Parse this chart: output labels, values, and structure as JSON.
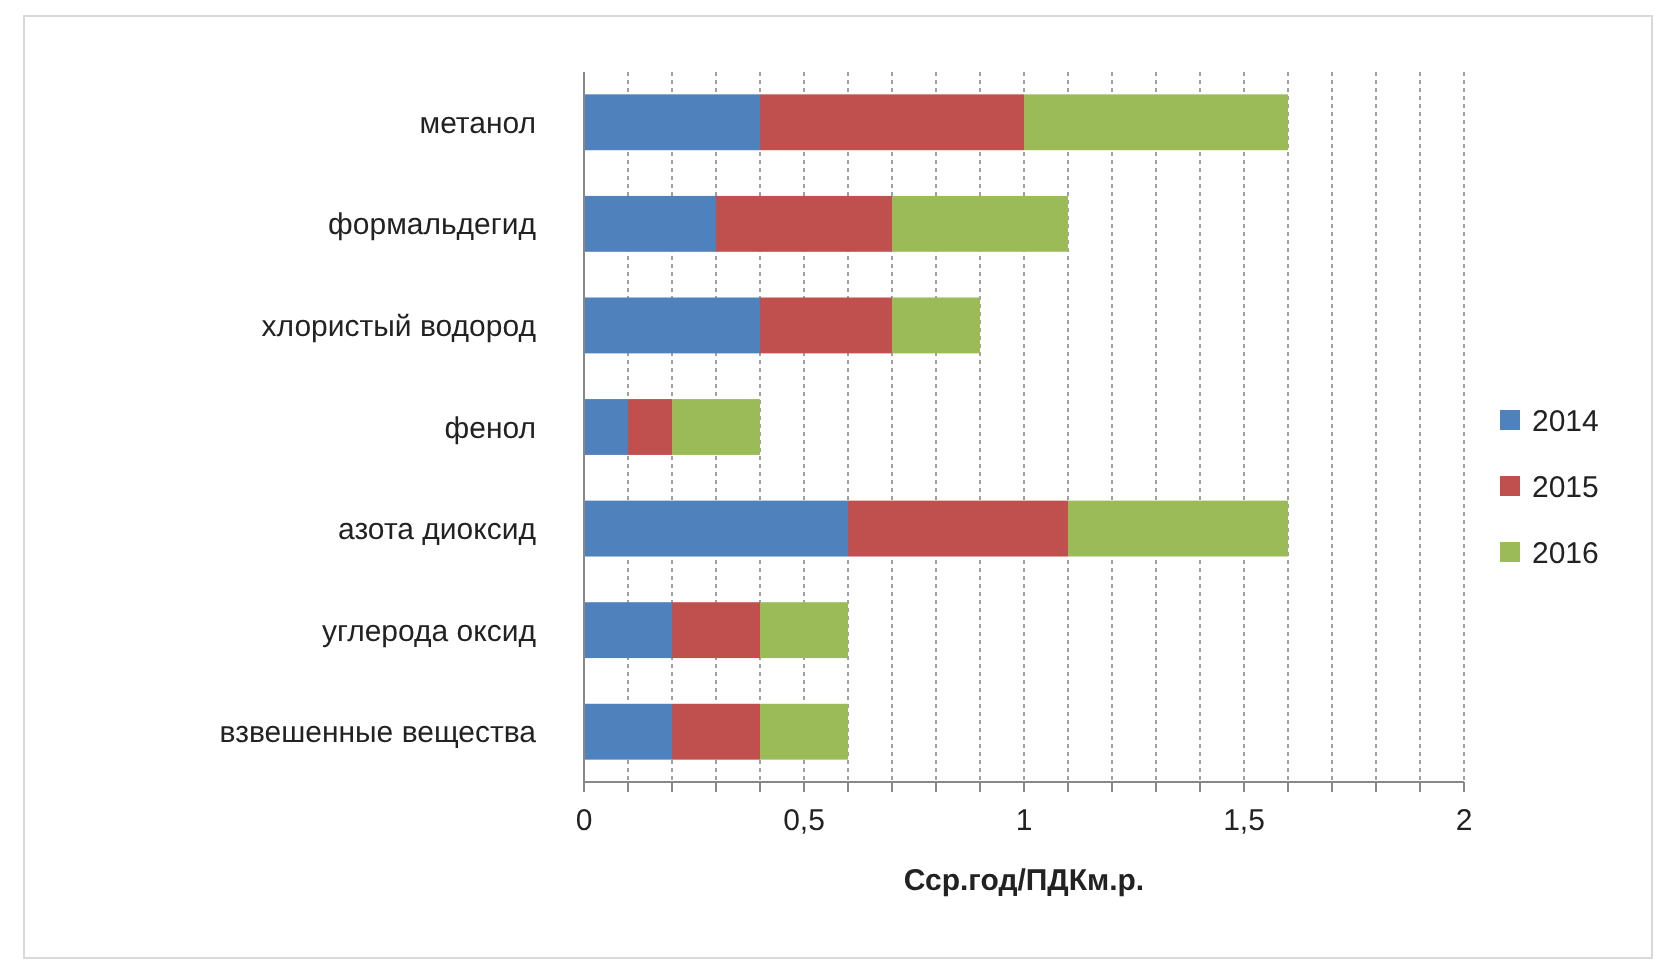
{
  "chart_data": {
    "type": "bar",
    "orientation": "horizontal",
    "stacked": true,
    "categories": [
      "метанол",
      "формальдегид",
      "хлористый водород",
      "фенол",
      "азота диоксид",
      "углерода оксид",
      "взвешенные вещества"
    ],
    "series": [
      {
        "name": "2014",
        "color": "#4f81bd",
        "values": [
          0.4,
          0.3,
          0.4,
          0.1,
          0.6,
          0.2,
          0.2
        ]
      },
      {
        "name": "2015",
        "color": "#c0504d",
        "values": [
          0.6,
          0.4,
          0.3,
          0.1,
          0.5,
          0.2,
          0.2
        ]
      },
      {
        "name": "2016",
        "color": "#9bbb59",
        "values": [
          0.6,
          0.4,
          0.2,
          0.2,
          0.5,
          0.2,
          0.2
        ]
      }
    ],
    "xlabel": "Сср.год/ПДКм.р.",
    "xlim": [
      0,
      2
    ],
    "xticks": [
      0,
      {
        "value": 0.1,
        "label": null
      },
      {
        "value": 0.2,
        "label": null
      },
      {
        "value": 0.3,
        "label": null
      },
      {
        "value": 0.4,
        "label": null
      },
      {
        "value": 0.5,
        "label": "0,5"
      },
      {
        "value": 0.6,
        "label": null
      },
      {
        "value": 0.7,
        "label": null
      },
      {
        "value": 0.8,
        "label": null
      },
      {
        "value": 0.9,
        "label": null
      },
      1,
      {
        "value": 1.1,
        "label": null
      },
      {
        "value": 1.2,
        "label": null
      },
      {
        "value": 1.3,
        "label": null
      },
      {
        "value": 1.4,
        "label": null
      },
      {
        "value": 1.5,
        "label": "1,5"
      },
      {
        "value": 1.6,
        "label": null
      },
      {
        "value": 1.7,
        "label": null
      },
      {
        "value": 1.8,
        "label": null
      },
      {
        "value": 1.9,
        "label": null
      },
      2
    ],
    "grid": "x",
    "legend": "right"
  }
}
